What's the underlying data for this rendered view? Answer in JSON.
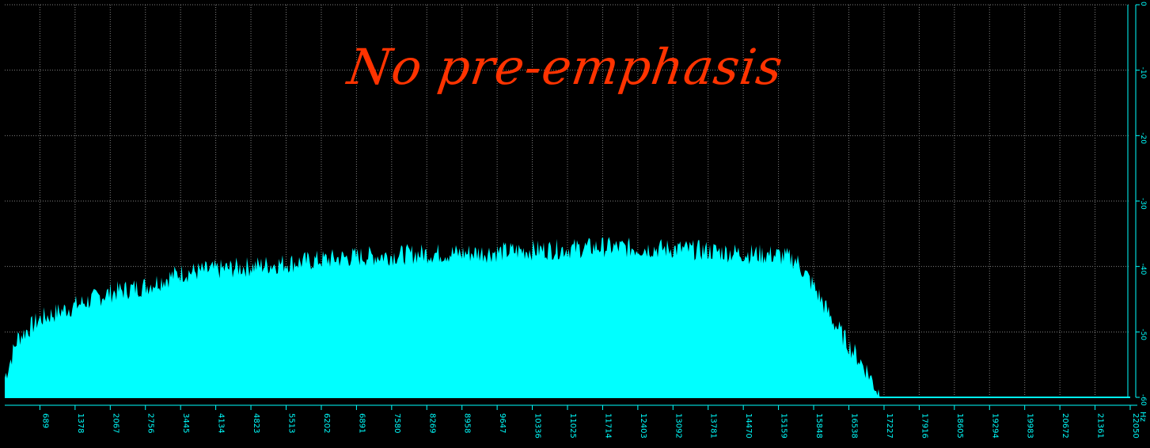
{
  "chart_data": {
    "type": "area",
    "title": "No pre-emphasis",
    "xlabel": "Hz",
    "x_ticks": [
      "689",
      "1378",
      "2067",
      "2756",
      "3445",
      "4134",
      "4823",
      "5513",
      "6202",
      "6891",
      "7580",
      "8269",
      "8958",
      "9647",
      "10336",
      "11025",
      "11714",
      "12403",
      "13092",
      "13781",
      "14470",
      "15159",
      "15848",
      "16538",
      "17227",
      "17916",
      "18605",
      "19294",
      "19983",
      "20672",
      "21361",
      "22050"
    ],
    "x_range": [
      0,
      22050
    ],
    "y_ticks": [
      "0",
      "-10",
      "-20",
      "-30",
      "-40",
      "-50",
      "-60"
    ],
    "y_range": [
      -60,
      0
    ],
    "grid": true,
    "series": [
      {
        "color": "#00ffff",
        "x": [
          0,
          250,
          689,
          1378,
          2067,
          2756,
          3445,
          4134,
          4823,
          5513,
          6202,
          6891,
          7580,
          8269,
          8958,
          9647,
          10336,
          11025,
          11714,
          12403,
          13092,
          13781,
          14470,
          15159,
          15500,
          15848,
          16200,
          16538,
          16900,
          17100,
          17227
        ],
        "y": [
          -57,
          -51,
          -48,
          -46,
          -44,
          -43,
          -41,
          -40.5,
          -40,
          -39.5,
          -39,
          -38.5,
          -38.3,
          -38,
          -38,
          -37.8,
          -37.5,
          -37.3,
          -37,
          -37.2,
          -37.3,
          -37.6,
          -38,
          -38.3,
          -39,
          -43,
          -48,
          -52,
          -56,
          -59,
          -60
        ]
      }
    ],
    "background": "#000000",
    "grid_color": "#808080",
    "axis_color": "#00ffff",
    "title_color": "#ff3300"
  }
}
